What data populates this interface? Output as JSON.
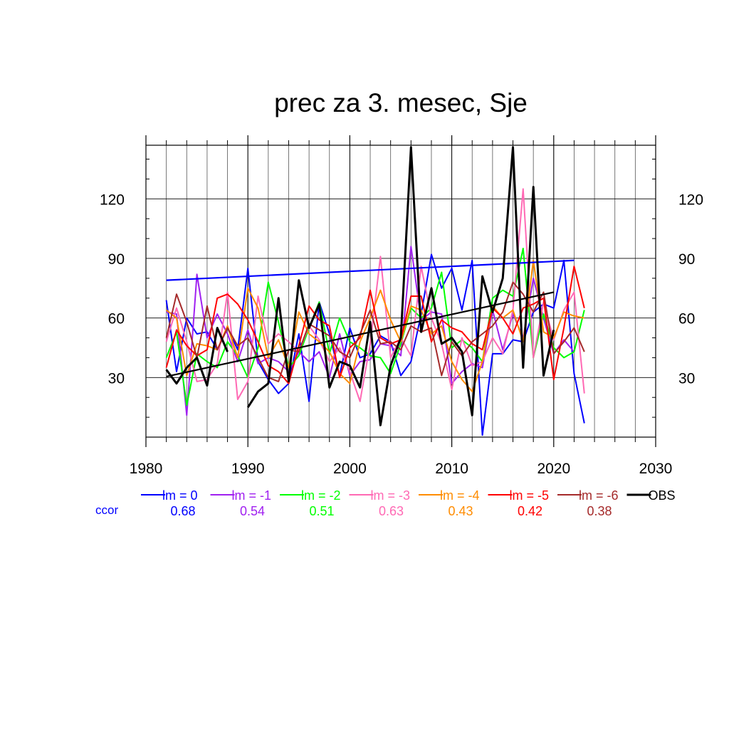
{
  "chart_data": {
    "type": "line",
    "title": "prec za 3. mesec, Sje",
    "xlim": [
      1980,
      2030
    ],
    "ylim": [
      0,
      147
    ],
    "x_ticks": [
      1980,
      1990,
      2000,
      2010,
      2020,
      2030
    ],
    "y_ticks": [
      30,
      60,
      90,
      120
    ],
    "grid": true,
    "legend_position": "bottom",
    "ccor_label": "ccor",
    "series": [
      {
        "name": "lm = 0",
        "color": "#0000ff",
        "ccor": "0.68",
        "x_start": 1982,
        "values": [
          69,
          33,
          60,
          52,
          53,
          44,
          55,
          44,
          85,
          38,
          29,
          22,
          27,
          52,
          18,
          68,
          52,
          31,
          55,
          40,
          42,
          51,
          48,
          31,
          38,
          62,
          92,
          75,
          85,
          64,
          89,
          1,
          42,
          42,
          49,
          48,
          63,
          67,
          65,
          89,
          32,
          7
        ]
      },
      {
        "name": "lm = -1",
        "color": "#a020f0",
        "ccor": "0.54",
        "x_start": 1982,
        "values": [
          63,
          62,
          11,
          82,
          50,
          62,
          52,
          38,
          54,
          37,
          40,
          38,
          33,
          43,
          38,
          43,
          30,
          52,
          31,
          38,
          39,
          47,
          46,
          41,
          96,
          59,
          63,
          62,
          27,
          33,
          37,
          35,
          64,
          44,
          62,
          50,
          80,
          60,
          42,
          49,
          43
        ]
      },
      {
        "name": "lm = -2",
        "color": "#00ff00",
        "ccor": "0.51",
        "x_start": 1982,
        "values": [
          40,
          53,
          16,
          42,
          38,
          35,
          48,
          41,
          30,
          45,
          78,
          58,
          35,
          41,
          55,
          68,
          42,
          60,
          48,
          45,
          41,
          40,
          32,
          47,
          65,
          60,
          65,
          83,
          45,
          49,
          45,
          38,
          70,
          74,
          71,
          95,
          40,
          62,
          45,
          40,
          43,
          64
        ]
      },
      {
        "name": "lm = -3",
        "color": "#ff69b4",
        "ccor": "0.63",
        "x_start": 1982,
        "values": [
          48,
          65,
          48,
          28,
          29,
          37,
          73,
          19,
          28,
          71,
          47,
          52,
          48,
          43,
          56,
          49,
          38,
          45,
          33,
          18,
          47,
          91,
          40,
          50,
          41,
          86,
          60,
          47,
          24,
          50,
          36,
          38,
          50,
          42,
          64,
          125,
          40,
          68,
          49,
          64,
          73,
          22
        ]
      },
      {
        "name": "lm = -4",
        "color": "#ff8c00",
        "ccor": "0.43",
        "x_start": 1982,
        "values": [
          64,
          60,
          31,
          47,
          46,
          44,
          56,
          40,
          75,
          65,
          40,
          49,
          35,
          63,
          52,
          48,
          43,
          32,
          27,
          48,
          60,
          74,
          59,
          48,
          66,
          64,
          52,
          56,
          38,
          29,
          23,
          38,
          66,
          60,
          64,
          48,
          89,
          53,
          50,
          63,
          61,
          60
        ]
      },
      {
        "name": "lm = -5",
        "color": "#ff0000",
        "ccor": "0.42",
        "x_start": 1982,
        "values": [
          35,
          54,
          46,
          41,
          44,
          70,
          72,
          67,
          59,
          48,
          36,
          33,
          27,
          46,
          66,
          59,
          56,
          30,
          45,
          50,
          74,
          50,
          47,
          49,
          71,
          71,
          48,
          59,
          55,
          53,
          47,
          44,
          65,
          60,
          52,
          65,
          67,
          70,
          29,
          55,
          86,
          65
        ]
      },
      {
        "name": "lm = -6",
        "color": "#a52a2a",
        "ccor": "0.38",
        "x_start": 1982,
        "values": [
          50,
          72,
          58,
          40,
          66,
          44,
          55,
          46,
          50,
          40,
          30,
          28,
          44,
          43,
          57,
          54,
          51,
          43,
          40,
          52,
          64,
          47,
          48,
          44,
          56,
          53,
          55,
          31,
          48,
          41,
          48,
          52,
          56,
          63,
          78,
          72,
          63,
          73,
          42,
          48,
          55,
          43
        ]
      },
      {
        "name": "OBS",
        "color": "#000000",
        "ccor": "",
        "x_start": 1982,
        "values": [
          34,
          27,
          35,
          40,
          26,
          55,
          43,
          null,
          15,
          23,
          27,
          70,
          28,
          79,
          55,
          67,
          25,
          38,
          36,
          25,
          58,
          6,
          36,
          50,
          146,
          53,
          75,
          47,
          50,
          43,
          11,
          81,
          63,
          80,
          146,
          35,
          126,
          31,
          54
        ]
      }
    ],
    "trend_lines": [
      {
        "name": "lm = 0 trend",
        "color": "#0000ff",
        "x": [
          1982,
          2022
        ],
        "y": [
          79,
          89
        ]
      },
      {
        "name": "OBS trend",
        "color": "#000000",
        "x": [
          1982,
          2020
        ],
        "y": [
          30.5,
          73
        ]
      }
    ]
  }
}
